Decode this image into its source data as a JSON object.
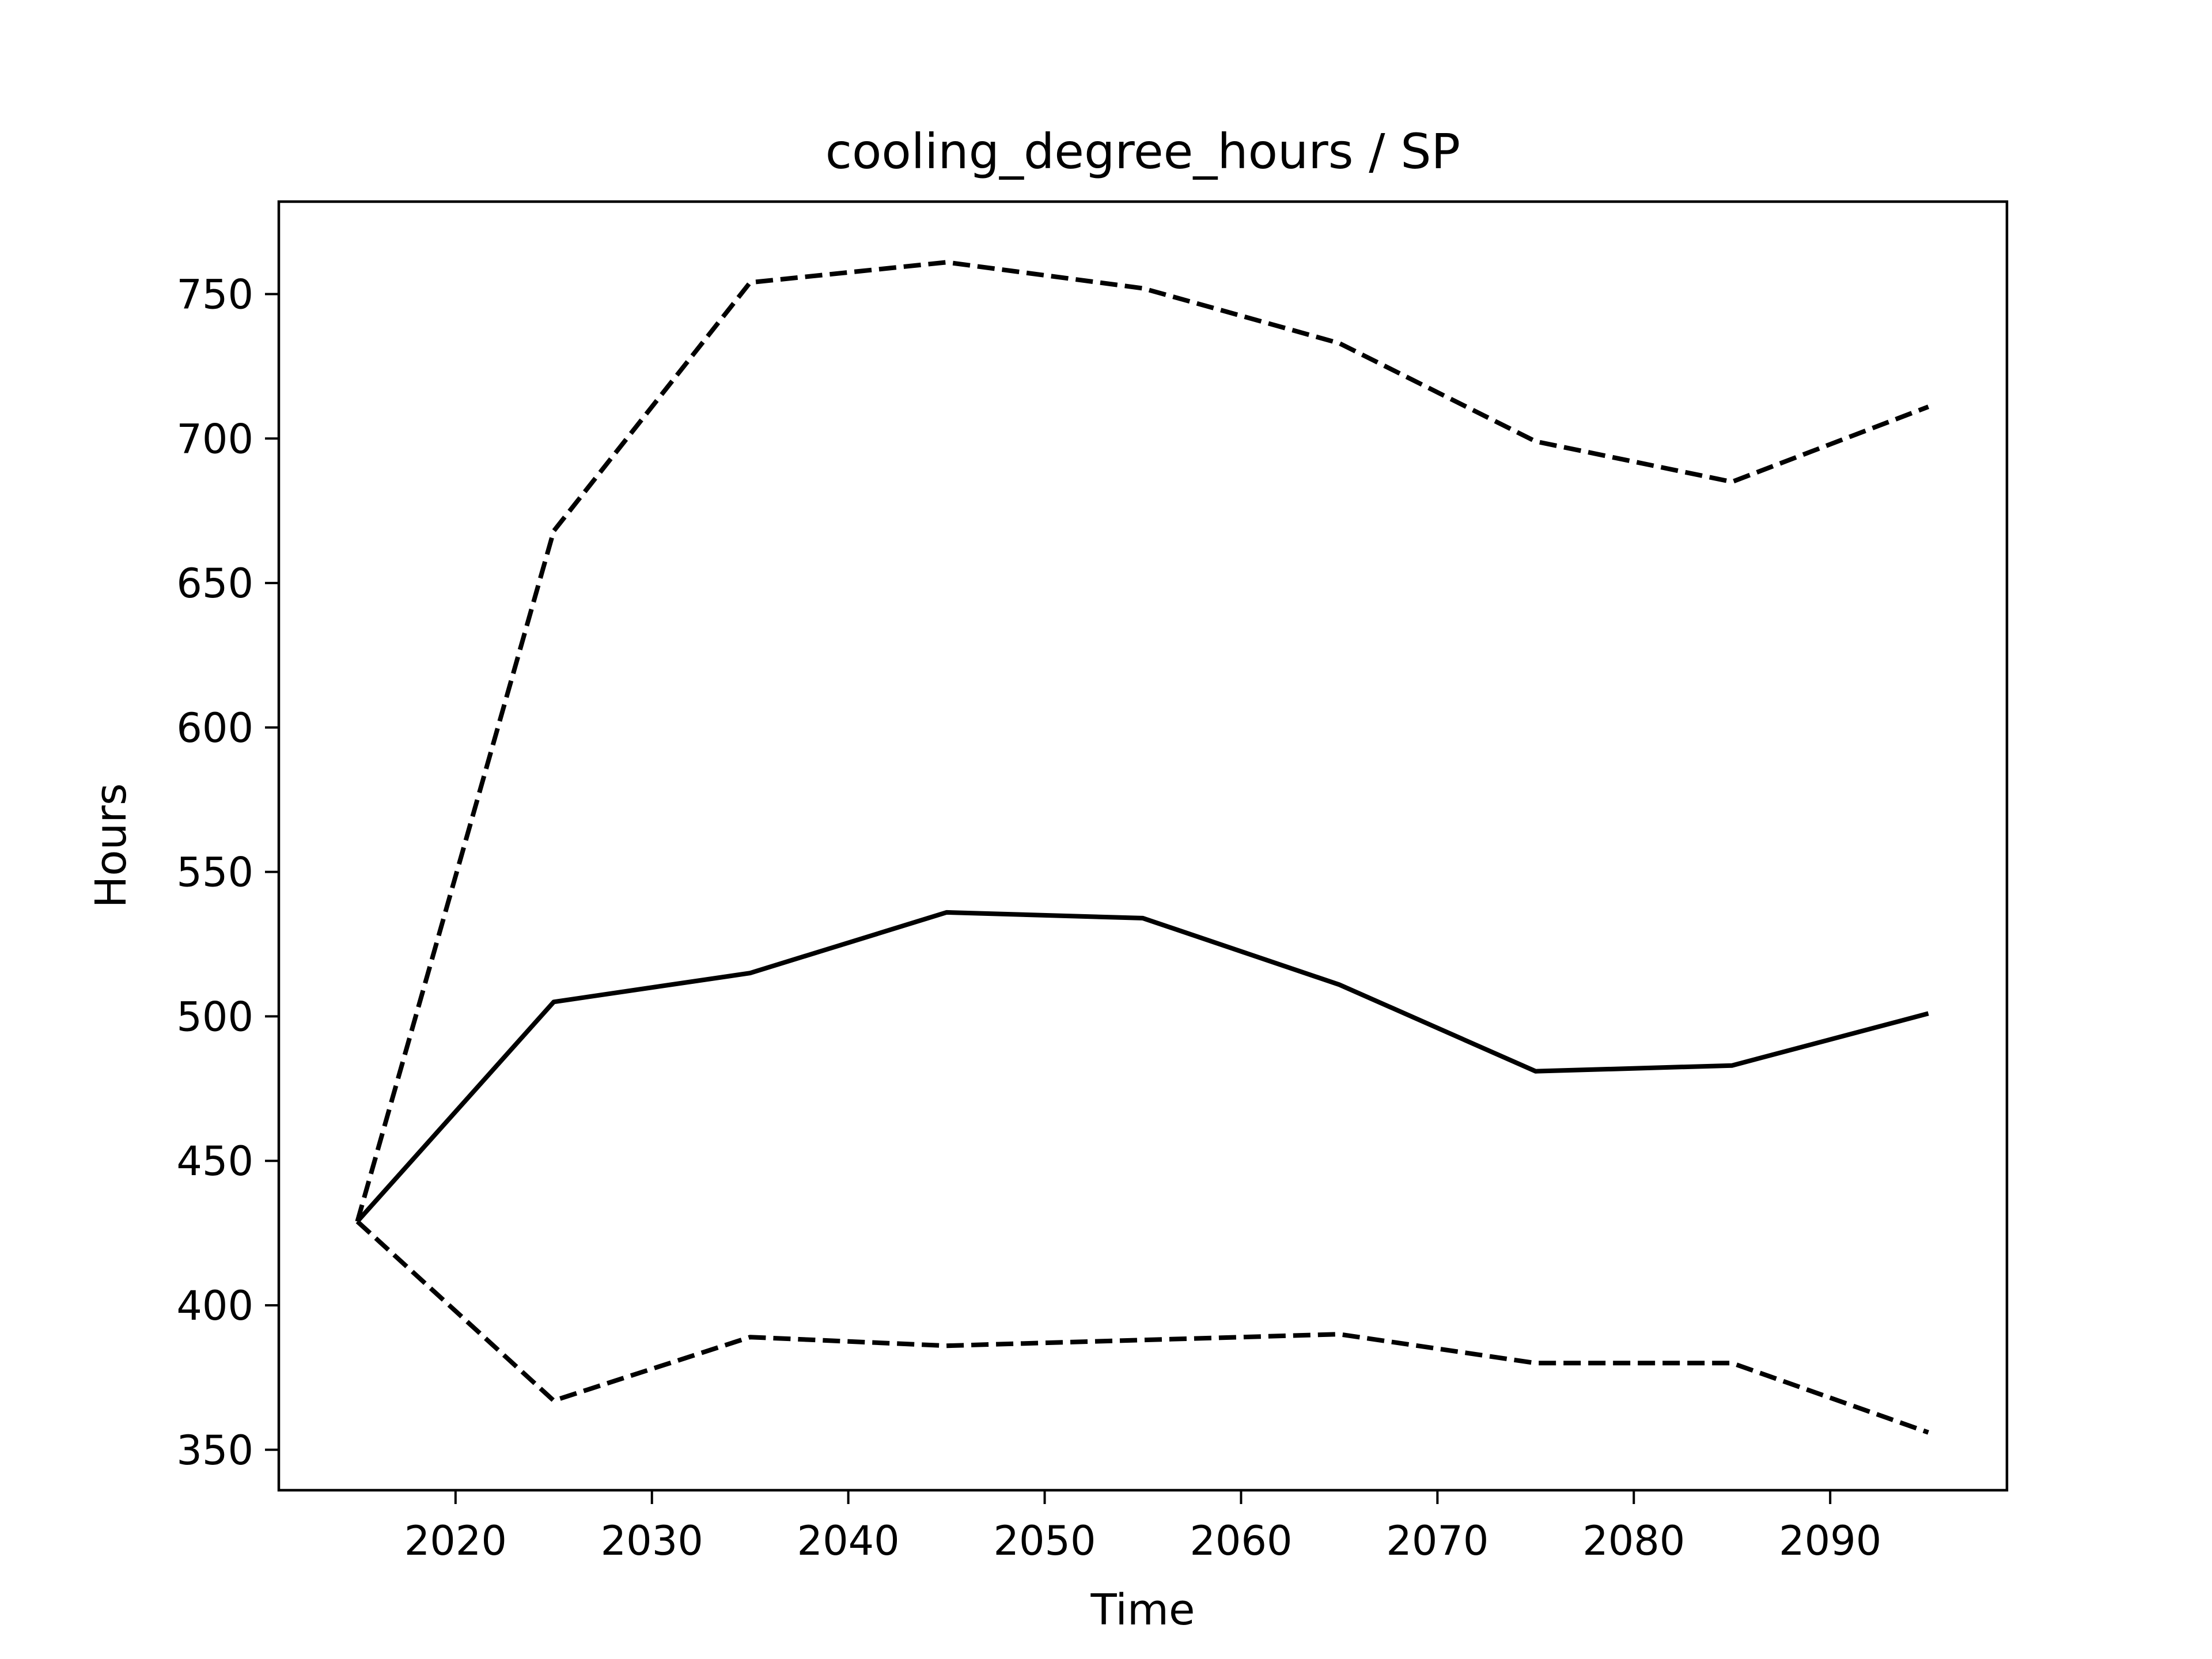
{
  "chart_data": {
    "type": "line",
    "title": "cooling_degree_hours / SP",
    "xlabel": "Time",
    "ylabel": "Hours",
    "xlim": [
      2011,
      2099
    ],
    "ylim": [
      336,
      782
    ],
    "xticks": [
      2020,
      2030,
      2040,
      2050,
      2060,
      2070,
      2080,
      2090
    ],
    "yticks": [
      350,
      400,
      450,
      500,
      550,
      600,
      650,
      700,
      750
    ],
    "grid": false,
    "line_color": "#000000",
    "x": [
      2015,
      2025,
      2035,
      2045,
      2055,
      2065,
      2075,
      2085,
      2095
    ],
    "series": [
      {
        "style": "dashed",
        "values": [
          429,
          668,
          754,
          761,
          752,
          733,
          699,
          685,
          711
        ]
      },
      {
        "style": "solid",
        "values": [
          429,
          505,
          515,
          536,
          534,
          511,
          481,
          483,
          501
        ]
      },
      {
        "style": "dashed",
        "values": [
          429,
          367,
          389,
          386,
          388,
          390,
          380,
          380,
          356
        ]
      }
    ]
  }
}
